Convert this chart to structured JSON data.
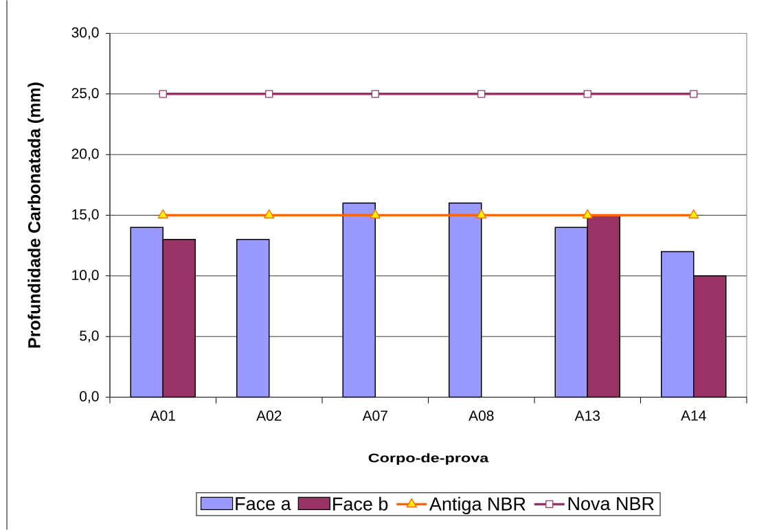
{
  "chart_data": {
    "type": "bar",
    "xlabel": "Corpo-de-prova",
    "ylabel": "Profundidade Carbonatada (mm)",
    "categories": [
      "A01",
      "A02",
      "A07",
      "A08",
      "A13",
      "A14"
    ],
    "series": [
      {
        "name": "Face a",
        "color": "#9999ff",
        "values": [
          14,
          13,
          16,
          16,
          14,
          12
        ]
      },
      {
        "name": "Face b",
        "color": "#993366",
        "values": [
          13,
          null,
          null,
          null,
          15,
          10
        ]
      },
      {
        "name": "Antiga NBR",
        "type": "line",
        "color": "#ff6600",
        "marker": "triangle",
        "values": [
          15,
          15,
          15,
          15,
          15,
          15
        ]
      },
      {
        "name": "Nova NBR",
        "type": "line",
        "color": "#993366",
        "marker": "square",
        "values": [
          25,
          25,
          25,
          25,
          25,
          25
        ]
      }
    ],
    "ylim": [
      0,
      30
    ],
    "yticks": [
      {
        "value": 0,
        "label": "0,0"
      },
      {
        "value": 5,
        "label": "5,0"
      },
      {
        "value": 10,
        "label": "10,0"
      },
      {
        "value": 15,
        "label": "15,0"
      },
      {
        "value": 20,
        "label": "20,0"
      },
      {
        "value": 25,
        "label": "25,0"
      },
      {
        "value": 30,
        "label": "30,0"
      }
    ],
    "grid": "y",
    "legend": "bottom"
  }
}
